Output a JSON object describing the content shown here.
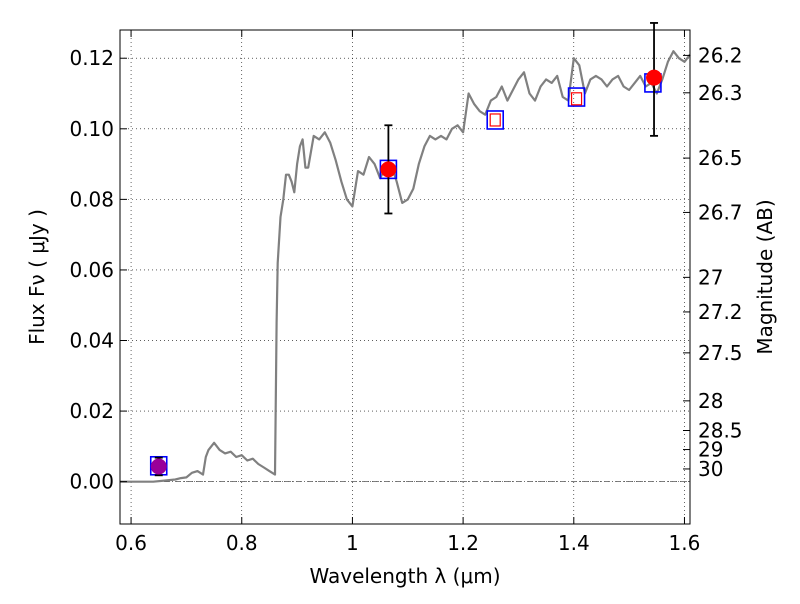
{
  "chart_data": {
    "type": "line",
    "title": "",
    "xlabel": "Wavelength  λ (μm)",
    "ylabel": "Flux  Fν  ( μJy )",
    "ylabel_right": "Magnitude (AB)",
    "xlim": [
      0.58,
      1.61
    ],
    "ylim": [
      -0.012,
      0.128
    ],
    "grid": true,
    "x_ticks": [
      0.6,
      0.8,
      1.0,
      1.2,
      1.4,
      1.6
    ],
    "x_tick_labels": [
      "0.6",
      "0.8",
      "1",
      "1.2",
      "1.4",
      "1.6"
    ],
    "y_ticks": [
      0.0,
      0.02,
      0.04,
      0.06,
      0.08,
      0.1,
      0.12
    ],
    "y_tick_labels": [
      "0.00",
      "0.02",
      "0.04",
      "0.06",
      "0.08",
      "0.10",
      "0.12"
    ],
    "mag_ticks": [
      {
        "label": "26.2",
        "flux": 0.1208
      },
      {
        "label": "26.3",
        "flux": 0.1102
      },
      {
        "label": "26.5",
        "flux": 0.0917
      },
      {
        "label": "26.7",
        "flux": 0.0763
      },
      {
        "label": "27",
        "flux": 0.0579
      },
      {
        "label": "27.2",
        "flux": 0.0481
      },
      {
        "label": "27.5",
        "flux": 0.0365
      },
      {
        "label": "28",
        "flux": 0.0229
      },
      {
        "label": "28.5",
        "flux": 0.0145
      },
      {
        "label": "29",
        "flux": 0.0091
      },
      {
        "label": "30",
        "flux": 0.0036
      }
    ],
    "colors": {
      "model": "#808080",
      "model_points": "#0000ff",
      "observed": "#ff0000",
      "detection": "#990099",
      "errorbar": "#000000",
      "zero_line": "#555555"
    },
    "series": [
      {
        "type": "line",
        "x": [
          0.58,
          0.6,
          0.62,
          0.64,
          0.66,
          0.68,
          0.69,
          0.7,
          0.71,
          0.72,
          0.73,
          0.735,
          0.74,
          0.75,
          0.76,
          0.77,
          0.78,
          0.79,
          0.8,
          0.81,
          0.82,
          0.83,
          0.84,
          0.85,
          0.86,
          0.863,
          0.865,
          0.87,
          0.875,
          0.88,
          0.885,
          0.89,
          0.895,
          0.9,
          0.905,
          0.91,
          0.915,
          0.92,
          0.93,
          0.94,
          0.95,
          0.96,
          0.97,
          0.98,
          0.99,
          1.0,
          1.01,
          1.02,
          1.03,
          1.04,
          1.05,
          1.06,
          1.07,
          1.08,
          1.09,
          1.1,
          1.11,
          1.12,
          1.13,
          1.14,
          1.15,
          1.16,
          1.17,
          1.18,
          1.19,
          1.2,
          1.21,
          1.22,
          1.23,
          1.24,
          1.25,
          1.26,
          1.27,
          1.28,
          1.29,
          1.3,
          1.31,
          1.32,
          1.33,
          1.34,
          1.35,
          1.36,
          1.37,
          1.38,
          1.39,
          1.4,
          1.41,
          1.42,
          1.43,
          1.44,
          1.45,
          1.46,
          1.47,
          1.48,
          1.49,
          1.5,
          1.51,
          1.52,
          1.53,
          1.54,
          1.55,
          1.56,
          1.57,
          1.58,
          1.59,
          1.6,
          1.61
        ],
        "y": [
          0.0,
          0.0,
          0.0,
          0.0,
          0.0003,
          0.0006,
          0.001,
          0.0012,
          0.0025,
          0.003,
          0.002,
          0.007,
          0.009,
          0.011,
          0.009,
          0.008,
          0.0085,
          0.007,
          0.0075,
          0.006,
          0.0065,
          0.005,
          0.004,
          0.003,
          0.002,
          0.045,
          0.062,
          0.075,
          0.08,
          0.087,
          0.087,
          0.085,
          0.082,
          0.09,
          0.095,
          0.097,
          0.089,
          0.089,
          0.098,
          0.097,
          0.099,
          0.096,
          0.091,
          0.085,
          0.08,
          0.078,
          0.088,
          0.087,
          0.092,
          0.09,
          0.086,
          0.089,
          0.09,
          0.085,
          0.079,
          0.08,
          0.083,
          0.09,
          0.095,
          0.098,
          0.097,
          0.098,
          0.097,
          0.1,
          0.101,
          0.099,
          0.11,
          0.107,
          0.105,
          0.104,
          0.108,
          0.109,
          0.112,
          0.108,
          0.111,
          0.114,
          0.116,
          0.11,
          0.108,
          0.112,
          0.114,
          0.113,
          0.115,
          0.109,
          0.108,
          0.12,
          0.118,
          0.11,
          0.114,
          0.115,
          0.114,
          0.112,
          0.114,
          0.115,
          0.112,
          0.111,
          0.113,
          0.115,
          0.112,
          0.113,
          0.11,
          0.114,
          0.119,
          0.122,
          0.12,
          0.119,
          0.121
        ]
      },
      {
        "type": "open_square",
        "points": [
          {
            "x": 0.65,
            "y": 0.0045
          },
          {
            "x": 1.065,
            "y": 0.0885
          },
          {
            "x": 1.258,
            "y": 0.1025
          },
          {
            "x": 1.405,
            "y": 0.109
          },
          {
            "x": 1.543,
            "y": 0.113
          }
        ]
      },
      {
        "type": "small_red_square",
        "points": [
          {
            "x": 1.258,
            "y": 0.1025
          },
          {
            "x": 1.405,
            "y": 0.1085
          }
        ]
      },
      {
        "type": "filled_circle_with_errorbars",
        "points": [
          {
            "x": 0.65,
            "y": 0.0043,
            "yerr_low": 0.0025,
            "yerr_high": 0.0025,
            "color": "#990099"
          },
          {
            "x": 1.065,
            "y": 0.0885,
            "yerr_low": 0.0125,
            "yerr_high": 0.0125,
            "color": "#ff0000"
          },
          {
            "x": 1.545,
            "y": 0.1145,
            "yerr_low": 0.0165,
            "yerr_high": 0.0155,
            "color": "#ff0000"
          }
        ]
      }
    ]
  }
}
